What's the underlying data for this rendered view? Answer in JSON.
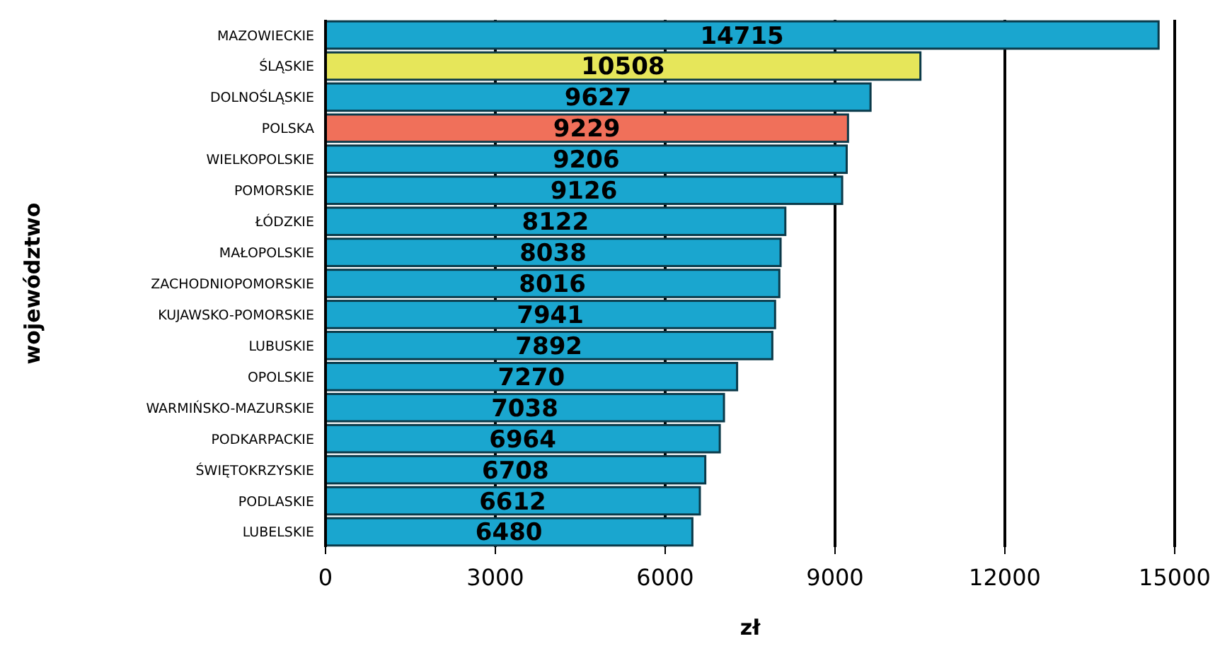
{
  "chart_data": {
    "type": "bar",
    "orientation": "horizontal",
    "xlabel": "zł",
    "ylabel": "województwo",
    "categories": [
      "MAZOWIECKIE",
      "ŚLĄSKIE",
      "DOLNOŚLĄSKIE",
      "POLSKA",
      "WIELKOPOLSKIE",
      "POMORSKIE",
      "ŁÓDZKIE",
      "MAŁOPOLSKIE",
      "ZACHODNIOPOMORSKIE",
      "KUJAWSKO-POMORSKIE",
      "LUBUSKIE",
      "OPOLSKIE",
      "WARMIŃSKO-MAZURSKIE",
      "PODKARPACKIE",
      "ŚWIĘTOKRZYSKIE",
      "PODLASKIE",
      "LUBELSKIE"
    ],
    "values": [
      14715,
      10508,
      9627,
      9229,
      9206,
      9126,
      8122,
      8038,
      8016,
      7941,
      7892,
      7270,
      7038,
      6964,
      6708,
      6612,
      6480
    ],
    "colors": [
      "#1aa6cf",
      "#e6e65a",
      "#1aa6cf",
      "#f0705a",
      "#1aa6cf",
      "#1aa6cf",
      "#1aa6cf",
      "#1aa6cf",
      "#1aa6cf",
      "#1aa6cf",
      "#1aa6cf",
      "#1aa6cf",
      "#1aa6cf",
      "#1aa6cf",
      "#1aa6cf",
      "#1aa6cf",
      "#1aa6cf"
    ],
    "xlim": [
      0,
      15000
    ],
    "xticks": [
      0,
      3000,
      6000,
      9000,
      12000,
      15000
    ],
    "grid": "x",
    "data_labels": true
  }
}
